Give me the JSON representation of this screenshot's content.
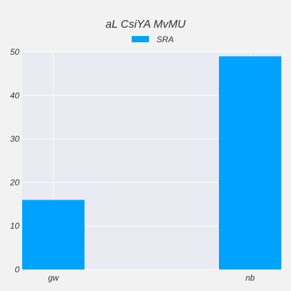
{
  "chart_data": {
    "type": "bar",
    "title": "aL CsiYA MvMU",
    "xlabel": "",
    "ylabel": "",
    "categories": [
      "gw",
      "nb"
    ],
    "series": [
      {
        "name": "SRA",
        "values": [
          16,
          49
        ]
      }
    ],
    "ylim": [
      0,
      50
    ],
    "yticks": [
      0,
      10,
      20,
      30,
      40,
      50
    ],
    "grid": true,
    "legend_position": "top-center",
    "colors": {
      "background": "#f2f2f2",
      "plot_background": "#eaeaf2",
      "grid": "#ffffff",
      "bar": "#00a2ff",
      "text": "#333333"
    }
  }
}
